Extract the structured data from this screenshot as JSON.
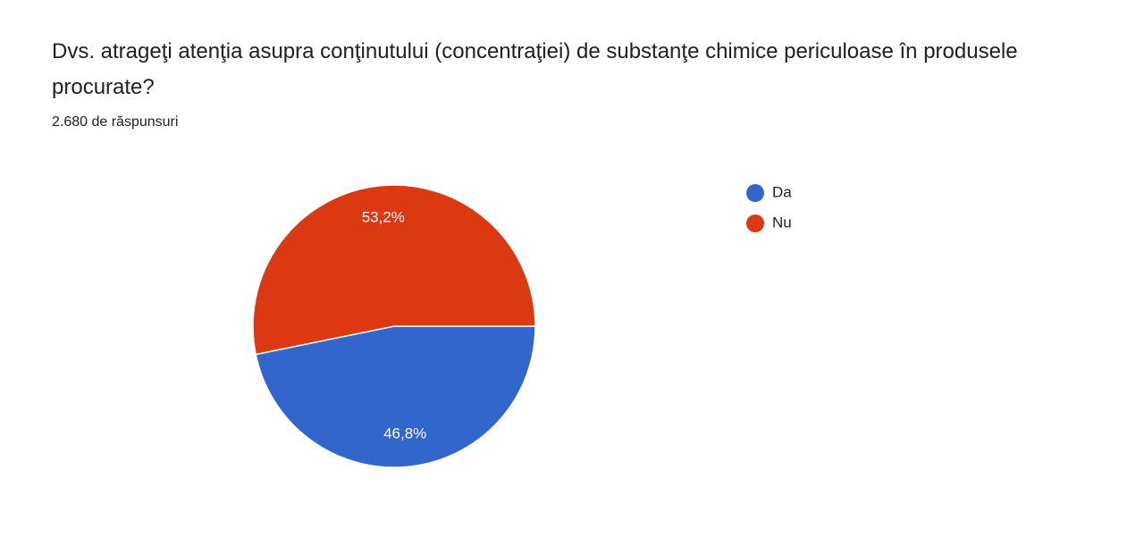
{
  "chart_data": {
    "type": "pie",
    "title": "Dvs. atrageţi atenţia asupra conţinutului (concentraţiei) de substanţe chimice periculoase în produsele procurate?",
    "subtitle": "2.680 de răspunsuri",
    "categories": [
      "Da",
      "Nu"
    ],
    "values": [
      46.8,
      53.2
    ],
    "value_labels": [
      "46,8%",
      "53,2%"
    ],
    "colors": [
      "#3366cc",
      "#dc3912"
    ],
    "legend": "right"
  }
}
